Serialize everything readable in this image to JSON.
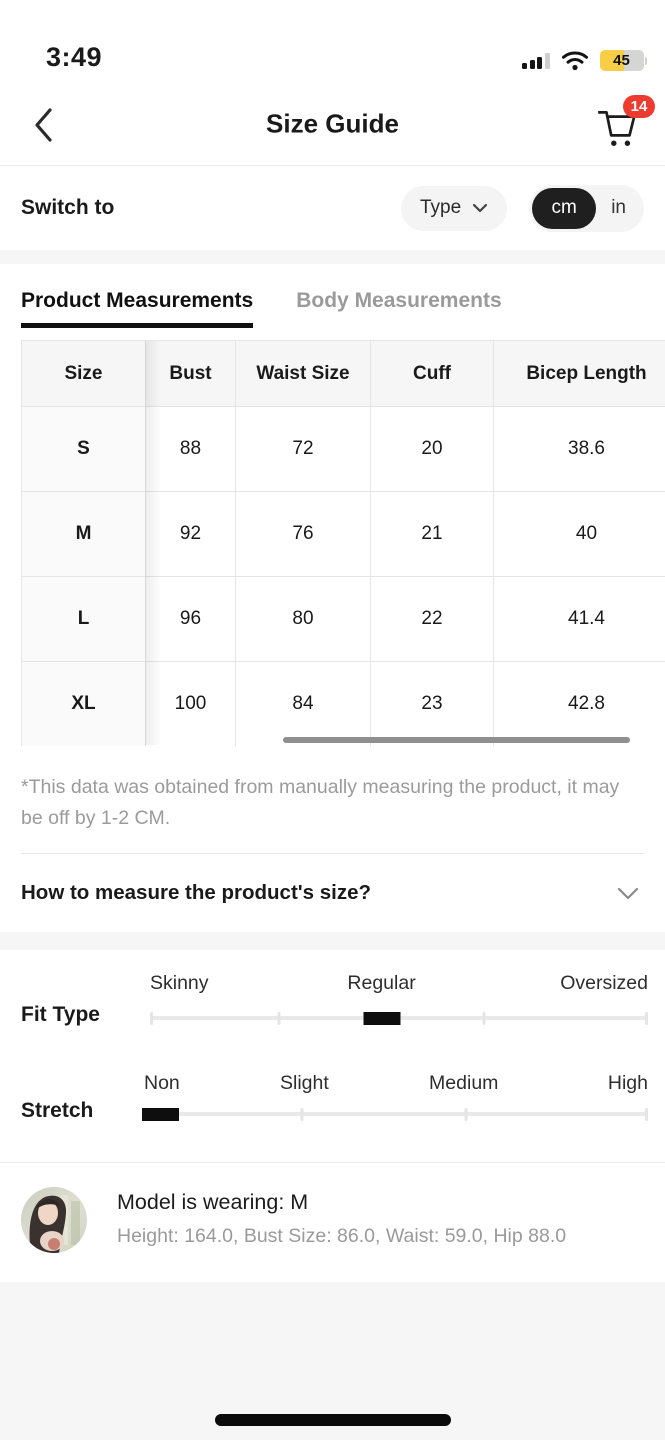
{
  "status_bar": {
    "time": "3:49",
    "battery_percent": "45"
  },
  "header": {
    "title": "Size Guide",
    "cart_badge": "14"
  },
  "switch_row": {
    "label": "Switch to",
    "type_button_label": "Type",
    "unit_cm": "cm",
    "unit_in": "in",
    "selected_unit": "cm"
  },
  "tabs": {
    "product": "Product Measurements",
    "body": "Body Measurements",
    "active": "Product Measurements"
  },
  "table": {
    "columns": [
      "Size",
      "Bust",
      "Waist Size",
      "Cuff",
      "Bicep Length"
    ],
    "rows": [
      {
        "size": "S",
        "values": [
          "88",
          "72",
          "20",
          "38.6"
        ]
      },
      {
        "size": "M",
        "values": [
          "92",
          "76",
          "21",
          "40"
        ]
      },
      {
        "size": "L",
        "values": [
          "96",
          "80",
          "22",
          "41.4"
        ]
      },
      {
        "size": "XL",
        "values": [
          "100",
          "84",
          "23",
          "42.8"
        ]
      }
    ]
  },
  "disclaimer": "*This data was obtained from manually measuring the product, it may be off by 1-2 CM.",
  "how_to": {
    "label": "How to measure the product's size?"
  },
  "fit_type": {
    "label": "Fit Type",
    "options": [
      "Skinny",
      "Regular",
      "Oversized"
    ],
    "selected": "Regular"
  },
  "stretch": {
    "label": "Stretch",
    "options": [
      "Non",
      "Slight",
      "Medium",
      "High"
    ],
    "selected": "Non"
  },
  "model": {
    "wearing": "Model is wearing: M",
    "details": "Height: 164.0, Bust Size: 86.0, Waist: 59.0, Hip 88.0"
  },
  "colors": {
    "badge_red": "#ee3b30",
    "battery_yellow": "#f7ce45",
    "toggle_dark": "#1f1f1f",
    "tab_underline": "#111111"
  }
}
